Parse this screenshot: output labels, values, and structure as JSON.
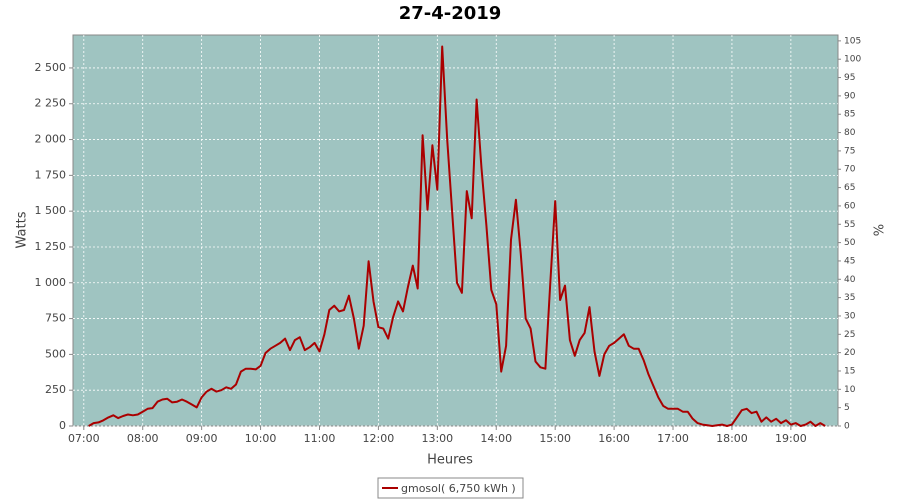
{
  "chart_data": {
    "type": "line",
    "title": "27-4-2019",
    "x_label": "Heures",
    "y_label": "Watts",
    "y2_label": "%",
    "x": [
      "07:05",
      "07:10",
      "07:15",
      "07:20",
      "07:25",
      "07:30",
      "07:35",
      "07:40",
      "07:45",
      "07:50",
      "07:55",
      "08:00",
      "08:05",
      "08:10",
      "08:15",
      "08:20",
      "08:25",
      "08:30",
      "08:35",
      "08:40",
      "08:45",
      "08:50",
      "08:55",
      "09:00",
      "09:05",
      "09:10",
      "09:15",
      "09:20",
      "09:25",
      "09:30",
      "09:35",
      "09:40",
      "09:45",
      "09:50",
      "09:55",
      "10:00",
      "10:05",
      "10:10",
      "10:15",
      "10:20",
      "10:25",
      "10:30",
      "10:35",
      "10:40",
      "10:45",
      "10:50",
      "10:55",
      "11:00",
      "11:05",
      "11:10",
      "11:15",
      "11:20",
      "11:25",
      "11:30",
      "11:35",
      "11:40",
      "11:45",
      "11:50",
      "11:55",
      "12:00",
      "12:05",
      "12:10",
      "12:15",
      "12:20",
      "12:25",
      "12:30",
      "12:35",
      "12:40",
      "12:45",
      "12:50",
      "12:55",
      "13:00",
      "13:05",
      "13:10",
      "13:15",
      "13:20",
      "13:25",
      "13:30",
      "13:35",
      "13:40",
      "13:45",
      "13:50",
      "13:55",
      "14:00",
      "14:05",
      "14:10",
      "14:15",
      "14:20",
      "14:25",
      "14:30",
      "14:35",
      "14:40",
      "14:45",
      "14:50",
      "14:55",
      "15:00",
      "15:05",
      "15:10",
      "15:15",
      "15:20",
      "15:25",
      "15:30",
      "15:35",
      "15:40",
      "15:45",
      "15:50",
      "15:55",
      "16:00",
      "16:05",
      "16:10",
      "16:15",
      "16:20",
      "16:25",
      "16:30",
      "16:35",
      "16:40",
      "16:45",
      "16:50",
      "16:55",
      "17:00",
      "17:05",
      "17:10",
      "17:15",
      "17:20",
      "17:25",
      "17:30",
      "17:35",
      "17:40",
      "17:45",
      "17:50",
      "17:55",
      "18:00",
      "18:05",
      "18:10",
      "18:15",
      "18:20",
      "18:25",
      "18:30",
      "18:35",
      "18:40",
      "18:45",
      "18:50",
      "18:55",
      "19:00",
      "19:05",
      "19:10",
      "19:15",
      "19:20",
      "19:25",
      "19:30",
      "19:35"
    ],
    "series": [
      {
        "name": "gmosol( 6,750 kWh )",
        "color": "#aa0000",
        "values": [
          0,
          20,
          25,
          40,
          60,
          75,
          55,
          70,
          80,
          75,
          80,
          100,
          120,
          125,
          170,
          185,
          190,
          165,
          170,
          185,
          170,
          150,
          130,
          200,
          240,
          260,
          240,
          250,
          270,
          260,
          290,
          380,
          400,
          400,
          395,
          420,
          510,
          540,
          560,
          580,
          610,
          530,
          600,
          620,
          530,
          550,
          580,
          520,
          640,
          810,
          840,
          800,
          810,
          910,
          750,
          540,
          700,
          1150,
          870,
          690,
          680,
          610,
          760,
          870,
          800,
          970,
          1120,
          960,
          2030,
          1510,
          1960,
          1650,
          2650,
          2000,
          1500,
          1000,
          930,
          1640,
          1450,
          2280,
          1800,
          1400,
          950,
          850,
          380,
          560,
          1300,
          1580,
          1200,
          750,
          680,
          450,
          410,
          400,
          1000,
          1570,
          880,
          980,
          600,
          490,
          600,
          650,
          830,
          520,
          350,
          500,
          560,
          580,
          610,
          640,
          560,
          540,
          540,
          460,
          360,
          280,
          200,
          140,
          120,
          120,
          120,
          100,
          100,
          50,
          20,
          10,
          5,
          0,
          5,
          10,
          0,
          10,
          60,
          110,
          120,
          90,
          100,
          30,
          60,
          30,
          50,
          20,
          40,
          10,
          20,
          0,
          10,
          30,
          0,
          20,
          0
        ]
      }
    ],
    "xlim": [
      "06:49",
      "19:48"
    ],
    "xticks": [
      "07:00",
      "08:00",
      "09:00",
      "10:00",
      "11:00",
      "12:00",
      "13:00",
      "14:00",
      "15:00",
      "16:00",
      "17:00",
      "18:00",
      "19:00"
    ],
    "ylim": [
      0,
      2730
    ],
    "yticks": [
      0,
      250,
      500,
      750,
      {
        "value": 1000,
        "label": "1 000"
      },
      {
        "value": 1250,
        "label": "1 250"
      },
      {
        "value": 1500,
        "label": "1 500"
      },
      {
        "value": 1750,
        "label": "1 750"
      },
      {
        "value": 2000,
        "label": "2 000"
      },
      {
        "value": 2250,
        "label": "2 250"
      },
      {
        "value": 2500,
        "label": "2 500"
      }
    ],
    "y2lim": [
      0,
      106.6
    ],
    "y2ticks": [
      0,
      5,
      10,
      15,
      20,
      25,
      30,
      35,
      40,
      45,
      50,
      55,
      60,
      65,
      70,
      75,
      80,
      85,
      90,
      95,
      100,
      105
    ],
    "grid": true,
    "plot_background": "#9fc4c1"
  }
}
